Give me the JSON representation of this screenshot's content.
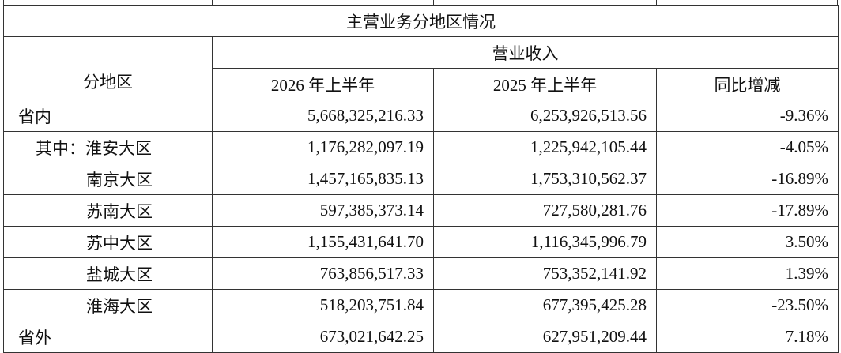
{
  "table": {
    "title": "主营业务分地区情况",
    "group_header": "营业收入",
    "columns": [
      "分地区",
      "2026 年上半年",
      "2025 年上半年",
      "同比增减"
    ],
    "rows": [
      [
        "省内",
        "5,668,325,216.33",
        "6,253,926,513.56",
        "-9.36%"
      ],
      [
        "其中：淮安大区",
        "1,176,282,097.19",
        "1,225,942,105.44",
        "-4.05%"
      ],
      [
        "南京大区",
        "1,457,165,835.13",
        "1,753,310,562.37",
        "-16.89%"
      ],
      [
        "苏南大区",
        "597,385,373.14",
        "727,580,281.76",
        "-17.89%"
      ],
      [
        "苏中大区",
        "1,155,431,641.70",
        "1,116,345,996.79",
        "3.50%"
      ],
      [
        "盐城大区",
        "763,856,517.33",
        "753,352,141.92",
        "1.39%"
      ],
      [
        "淮海大区",
        "518,203,751.84",
        "677,395,425.28",
        "-23.50%"
      ],
      [
        "省外",
        "673,021,642.25",
        "627,951,209.44",
        "7.18%"
      ]
    ]
  }
}
